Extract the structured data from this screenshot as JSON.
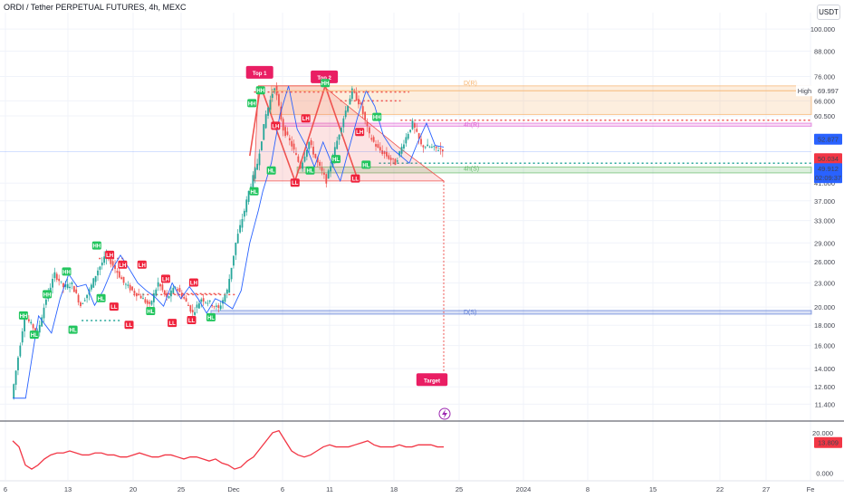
{
  "header": {
    "title": "ORDI / Tether PERPETUAL FUTURES, 4h, MEXC"
  },
  "unit_label": "USDT",
  "colors": {
    "up": "#26a69a",
    "down": "#ef5350",
    "orange": "#f6b26b",
    "pink": "#e066d6",
    "green": "#66bb6a",
    "blue": "#5b7bd5",
    "rsi": "#f23645"
  },
  "chart_data": {
    "type": "candlestick",
    "title": "ORDI / Tether PERPETUAL FUTURES, 4h, MEXC",
    "y_scale": "log",
    "ylim": [
      10.5,
      110
    ],
    "y_ticks": [
      "100.000",
      "88.000",
      "76.000",
      "66.000",
      "60.500",
      "41.000",
      "37.000",
      "33.000",
      "29.000",
      "26.000",
      "23.000",
      "20.000",
      "18.000",
      "16.000",
      "14.000",
      "12.600",
      "11.400"
    ],
    "x_ticks": [
      "6",
      "13",
      "20",
      "25",
      "Dec",
      "6",
      "11",
      "18",
      "25",
      "2024",
      "8",
      "15",
      "22",
      "27",
      "Fe"
    ],
    "price_trace": [
      [
        0,
        11.8
      ],
      [
        3,
        19.0
      ],
      [
        6,
        17.2
      ],
      [
        8,
        21.0
      ],
      [
        10,
        24.2
      ],
      [
        12,
        22.5
      ],
      [
        14,
        22.8
      ],
      [
        16,
        20.2
      ],
      [
        18,
        22.0
      ],
      [
        20,
        24.8
      ],
      [
        22,
        27.0
      ],
      [
        24,
        25.0
      ],
      [
        26,
        23.0
      ],
      [
        28,
        22.0
      ],
      [
        30,
        21.2
      ],
      [
        32,
        20.1
      ],
      [
        34,
        23.0
      ],
      [
        36,
        21.0
      ],
      [
        38,
        22.5
      ],
      [
        40,
        21.0
      ],
      [
        42,
        19.3
      ],
      [
        44,
        21.0
      ],
      [
        46,
        20.5
      ],
      [
        48,
        19.8
      ],
      [
        50,
        22.0
      ],
      [
        52,
        29.0
      ],
      [
        54,
        35.0
      ],
      [
        55,
        39.0
      ],
      [
        57,
        46.0
      ],
      [
        59,
        61.0
      ],
      [
        61,
        72.0
      ],
      [
        63,
        56.0
      ],
      [
        65,
        51.0
      ],
      [
        67,
        45.0
      ],
      [
        69,
        52.0
      ],
      [
        71,
        46.0
      ],
      [
        73,
        41.5
      ],
      [
        75,
        50.0
      ],
      [
        77,
        60.0
      ],
      [
        79,
        70.0
      ],
      [
        81,
        64.0
      ],
      [
        83,
        54.0
      ],
      [
        85,
        50.0
      ],
      [
        87,
        48.0
      ],
      [
        89,
        46.0
      ],
      [
        91,
        52.0
      ],
      [
        93,
        58.0
      ],
      [
        95,
        51.0
      ],
      [
        97,
        50.5
      ],
      [
        99,
        49.9
      ]
    ],
    "last_price": "49.912",
    "current_price": "50.034",
    "countdown": "02:09:37",
    "level_52": "52.877",
    "high": {
      "label": "High",
      "value": "69.997"
    },
    "zones": [
      {
        "name": "D(R)",
        "top": 72.0,
        "bottom": 61.0,
        "color": "#f6b26b"
      },
      {
        "name": "4h(R)",
        "top": 58.0,
        "bottom": 57.0,
        "color": "#e066d6"
      },
      {
        "name": "4h(S)",
        "top": 45.0,
        "bottom": 43.5,
        "color": "#66bb6a"
      },
      {
        "name": "D(S)",
        "top": 19.6,
        "bottom": 19.2,
        "color": "#5b7bd5"
      }
    ],
    "annotations": {
      "top1": "Top 1",
      "top2": "Top 2",
      "target": "Target",
      "target_value": 13.7,
      "markers": [
        {
          "t": "HH",
          "x": 2.5,
          "y": 19.0
        },
        {
          "t": "HH",
          "x": 8,
          "y": 21.5
        },
        {
          "t": "HH",
          "x": 12.5,
          "y": 24.5
        },
        {
          "t": "HH",
          "x": 19.5,
          "y": 28.5
        },
        {
          "t": "LH",
          "x": 22.5,
          "y": 27.0
        },
        {
          "t": "LH",
          "x": 25.5,
          "y": 25.5
        },
        {
          "t": "LH",
          "x": 30,
          "y": 25.5
        },
        {
          "t": "LH",
          "x": 35.5,
          "y": 23.5
        },
        {
          "t": "LH",
          "x": 42,
          "y": 23.0
        },
        {
          "t": "HL",
          "x": 5,
          "y": 17.0
        },
        {
          "t": "HL",
          "x": 14,
          "y": 17.5
        },
        {
          "t": "HL",
          "x": 20.5,
          "y": 21.0
        },
        {
          "t": "LL",
          "x": 23.5,
          "y": 20.0
        },
        {
          "t": "LL",
          "x": 27,
          "y": 18.0
        },
        {
          "t": "HL",
          "x": 32,
          "y": 19.5
        },
        {
          "t": "LL",
          "x": 37,
          "y": 18.2
        },
        {
          "t": "LL",
          "x": 41.5,
          "y": 18.5
        },
        {
          "t": "HL",
          "x": 46,
          "y": 18.8
        },
        {
          "t": "HH",
          "x": 55.5,
          "y": 65.0
        },
        {
          "t": "HH",
          "x": 57.5,
          "y": 70.0
        },
        {
          "t": "HL",
          "x": 56,
          "y": 39.0
        },
        {
          "t": "LH",
          "x": 61,
          "y": 57.0
        },
        {
          "t": "HL",
          "x": 60,
          "y": 44.0
        },
        {
          "t": "LL",
          "x": 65.5,
          "y": 41.0
        },
        {
          "t": "LH",
          "x": 68,
          "y": 59.5
        },
        {
          "t": "HH",
          "x": 72.5,
          "y": 73.0
        },
        {
          "t": "HL",
          "x": 69,
          "y": 44.0
        },
        {
          "t": "HL",
          "x": 75,
          "y": 47.0
        },
        {
          "t": "LH",
          "x": 80.5,
          "y": 55.0
        },
        {
          "t": "LL",
          "x": 79.5,
          "y": 42.0
        },
        {
          "t": "HH",
          "x": 84.5,
          "y": 60.0
        },
        {
          "t": "HL",
          "x": 82,
          "y": 45.5
        }
      ]
    },
    "rsi": {
      "ticks": [
        "20.000",
        "0.000"
      ],
      "value": "13.809",
      "values": [
        16,
        13,
        4,
        2,
        4,
        7,
        9,
        10,
        10,
        11,
        10,
        9,
        9,
        10,
        10,
        9,
        9,
        8,
        8,
        9,
        10,
        9,
        8,
        8,
        9,
        9,
        8,
        7,
        8,
        8,
        7,
        6,
        7,
        5,
        4,
        2,
        3,
        6,
        8,
        12,
        16,
        20,
        21,
        16,
        11,
        9,
        8,
        9,
        11,
        13,
        14,
        13,
        13,
        13,
        14,
        15,
        16,
        14,
        13,
        13,
        13,
        14,
        13,
        13,
        14,
        14,
        14,
        13,
        13
      ]
    }
  }
}
